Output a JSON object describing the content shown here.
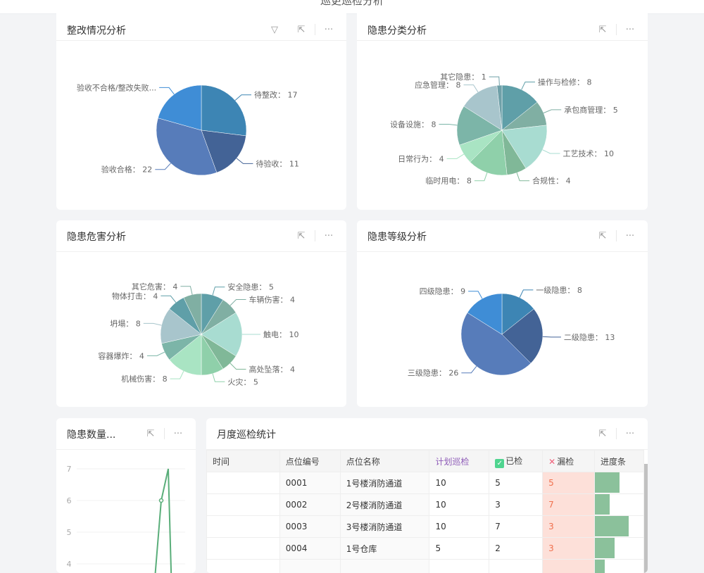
{
  "page": {
    "title": "巡更巡检分析"
  },
  "icons": {
    "filter": "filter-icon",
    "expand": "external-link-icon",
    "more": "more-icon"
  },
  "tool_glyphs": {
    "filter": "▽",
    "expand": "⇱",
    "more": "···"
  },
  "cards": {
    "rectify": {
      "title": "整改情况分析"
    },
    "category": {
      "title": "隐患分类分析"
    },
    "harm": {
      "title": "隐患危害分析"
    },
    "level": {
      "title": "隐患等级分析"
    },
    "count": {
      "title": "隐患数量..."
    },
    "monthly": {
      "title": "月度巡检统计"
    }
  },
  "chart_data": [
    {
      "type": "pie",
      "id": "rectify",
      "slices": [
        {
          "name": "待整改",
          "value": 17,
          "color": "#3d85b4"
        },
        {
          "name": "待验收",
          "value": 11,
          "color": "#436396"
        },
        {
          "name": "验收合格",
          "value": 22,
          "color": "#577cba"
        },
        {
          "name": "验收不合格/整改失败...",
          "value": 13,
          "color": "#3f8dd6",
          "label_hidden_value": true
        }
      ]
    },
    {
      "type": "pie",
      "id": "category",
      "slices": [
        {
          "name": "操作与检修",
          "value": 8,
          "color": "#5f9fa8"
        },
        {
          "name": "承包商管理",
          "value": 5,
          "color": "#80afa3"
        },
        {
          "name": "工艺技术",
          "value": 10,
          "color": "#a8dcd1"
        },
        {
          "name": "合规性",
          "value": 4,
          "color": "#80b898"
        },
        {
          "name": "临时用电",
          "value": 8,
          "color": "#8fd0aa"
        },
        {
          "name": "日常行为",
          "value": 4,
          "color": "#a9e4c3"
        },
        {
          "name": "设备设施",
          "value": 8,
          "color": "#7cb5a8"
        },
        {
          "name": "应急管理",
          "value": 8,
          "color": "#a8c5cc"
        },
        {
          "name": "其它隐患",
          "value": 1,
          "color": "#6fa0a8"
        }
      ]
    },
    {
      "type": "pie",
      "id": "harm",
      "slices": [
        {
          "name": "安全隐患",
          "value": 5,
          "color": "#5f9fa8"
        },
        {
          "name": "车辆伤害",
          "value": 4,
          "color": "#80afa3"
        },
        {
          "name": "触电",
          "value": 10,
          "color": "#a8dcd1"
        },
        {
          "name": "高处坠落",
          "value": 4,
          "color": "#80b898"
        },
        {
          "name": "火灾",
          "value": 5,
          "color": "#8fd0aa"
        },
        {
          "name": "机械伤害",
          "value": 8,
          "color": "#a9e4c3"
        },
        {
          "name": "容器爆炸",
          "value": 4,
          "color": "#7cb5a8"
        },
        {
          "name": "坍塌",
          "value": 8,
          "color": "#a8c5cc"
        },
        {
          "name": "物体打击",
          "value": 4,
          "color": "#5f9fa8"
        },
        {
          "name": "其它危害",
          "value": 4,
          "color": "#80afa3"
        }
      ]
    },
    {
      "type": "pie",
      "id": "level",
      "slices": [
        {
          "name": "一级隐患",
          "value": 8,
          "color": "#3d85b4"
        },
        {
          "name": "二级隐患",
          "value": 13,
          "color": "#436396"
        },
        {
          "name": "三级隐患",
          "value": 26,
          "color": "#577cba"
        },
        {
          "name": "四级隐患",
          "value": 9,
          "color": "#3f8dd6"
        }
      ]
    },
    {
      "type": "line",
      "id": "count",
      "y_ticks": [
        "7",
        "6",
        "5",
        "4"
      ],
      "ylim": [
        4,
        7
      ],
      "grid": true,
      "color": "#5aae7a",
      "values": [
        3,
        6,
        7,
        3
      ]
    }
  ],
  "table": {
    "headers": [
      "时间",
      "点位编号",
      "点位名称",
      "计划巡检",
      "已检",
      "漏检",
      "进度条"
    ],
    "rows": [
      {
        "time": "",
        "code": "0001",
        "name": "1号楼消防通道",
        "plan": "10",
        "done": "5",
        "miss": "5",
        "progress": 0.5
      },
      {
        "time": "",
        "code": "0002",
        "name": "2号楼消防通道",
        "plan": "10",
        "done": "3",
        "miss": "7",
        "progress": 0.3
      },
      {
        "time": "",
        "code": "0003",
        "name": "3号楼消防通道",
        "plan": "10",
        "done": "7",
        "miss": "3",
        "progress": 0.7
      },
      {
        "time": "",
        "code": "0004",
        "name": "1号仓库",
        "plan": "5",
        "done": "2",
        "miss": "3",
        "progress": 0.4
      },
      {
        "time": "",
        "code": "",
        "name": "",
        "plan": "",
        "done": "",
        "miss": "",
        "progress": 0.2
      }
    ]
  }
}
